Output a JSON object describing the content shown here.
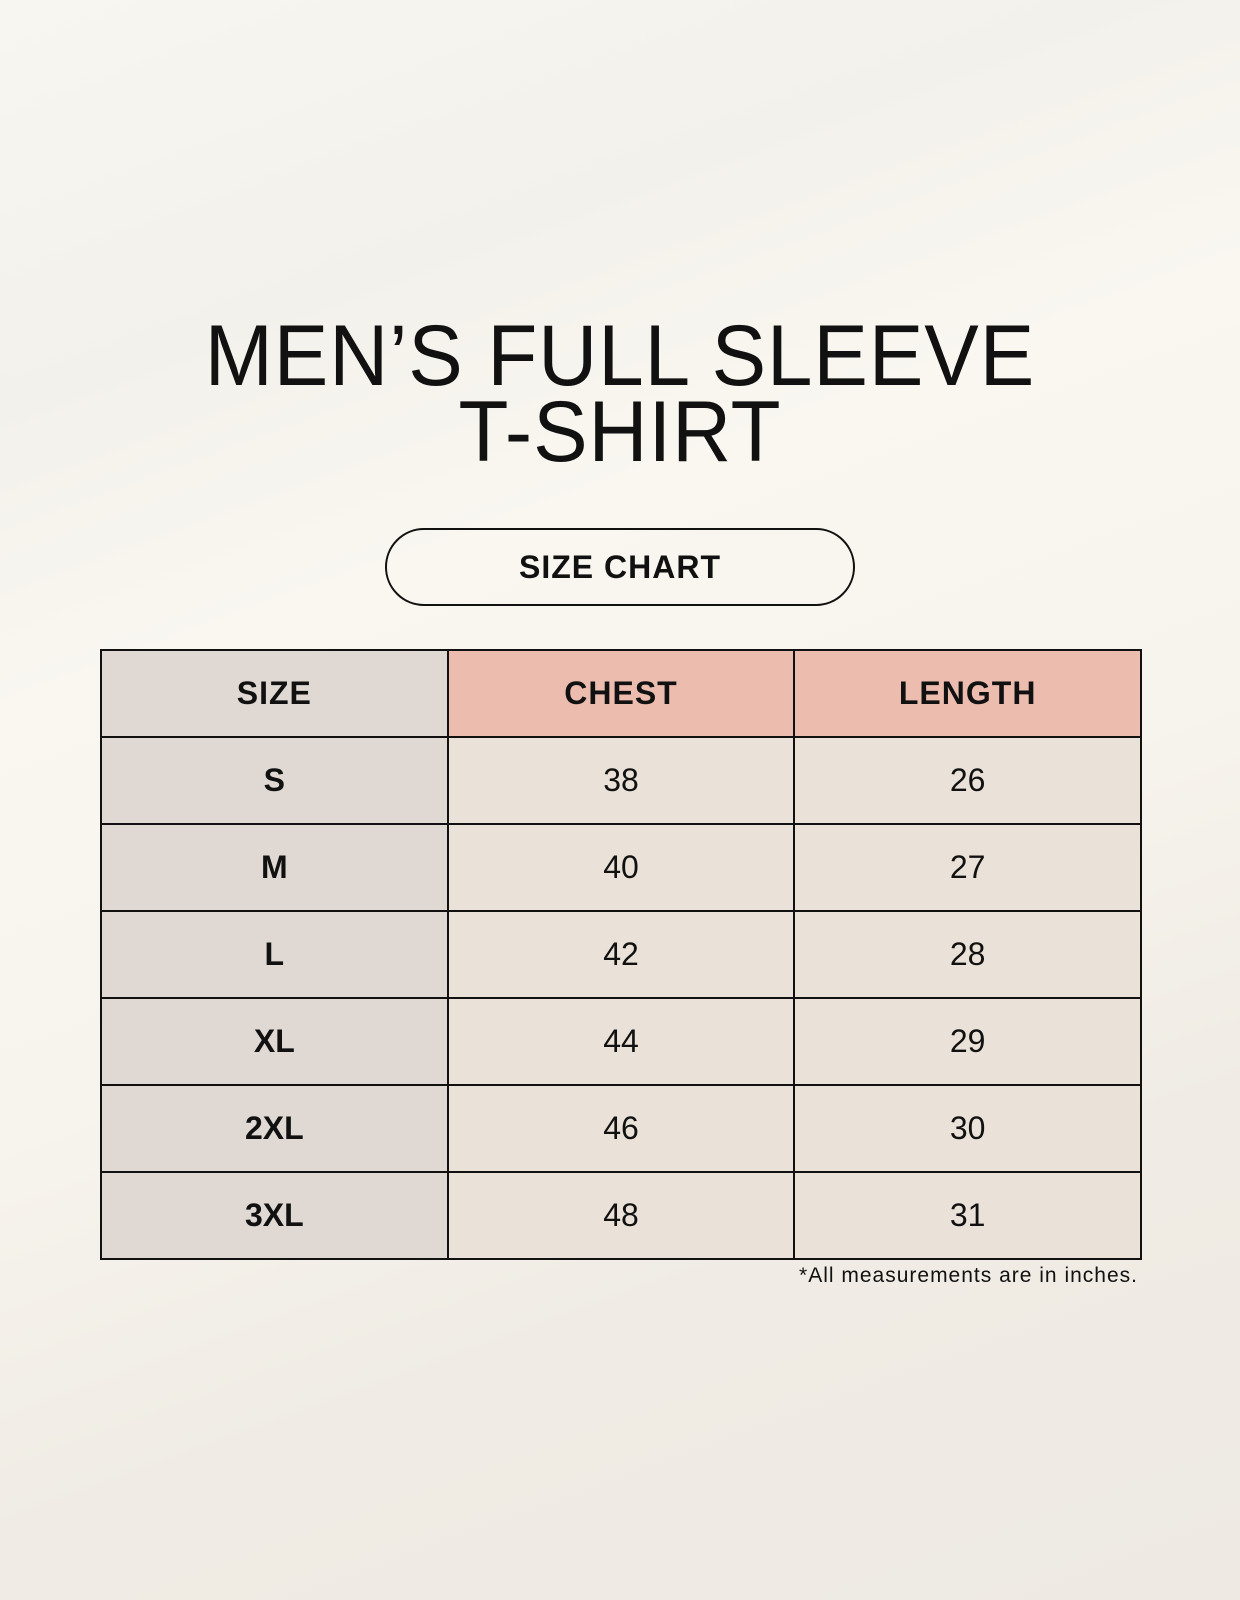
{
  "title": {
    "line1": "MEN’S FULL SLEEVE",
    "line2": "T-SHIRT"
  },
  "badge": "SIZE CHART",
  "table": {
    "headers": [
      "SIZE",
      "CHEST",
      "LENGTH"
    ],
    "rows": [
      [
        "S",
        "38",
        "26"
      ],
      [
        "M",
        "40",
        "27"
      ],
      [
        "L",
        "42",
        "28"
      ],
      [
        "XL",
        "44",
        "29"
      ],
      [
        "2XL",
        "46",
        "30"
      ],
      [
        "3XL",
        "48",
        "31"
      ]
    ]
  },
  "footnote": "*All measurements are in inches.",
  "colors": {
    "size_column": "#e0d9d3",
    "header_accent": "#ecbcaf",
    "cell": "#eae2d8"
  }
}
